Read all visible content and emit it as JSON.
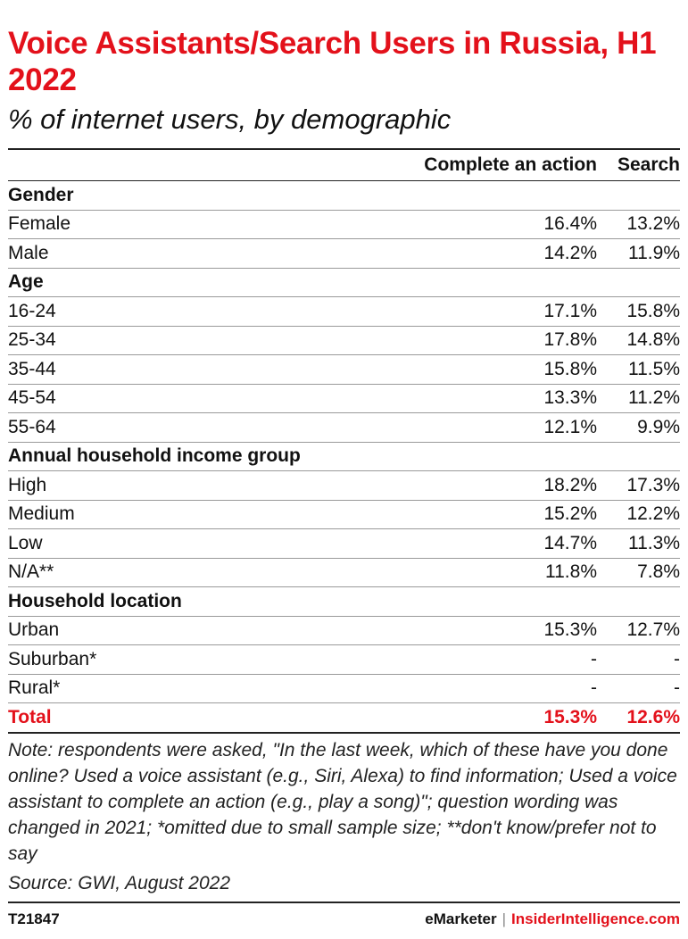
{
  "chart_data": {
    "type": "table",
    "title": "Voice Assistants/Search Users in Russia, H1 2022",
    "subtitle": "% of internet users, by demographic",
    "columns": [
      "",
      "Complete an action",
      "Search"
    ],
    "groups": [
      {
        "name": "Gender",
        "rows": [
          {
            "label": "Female",
            "action": "16.4%",
            "search": "13.2%"
          },
          {
            "label": "Male",
            "action": "14.2%",
            "search": "11.9%"
          }
        ]
      },
      {
        "name": "Age",
        "rows": [
          {
            "label": "16-24",
            "action": "17.1%",
            "search": "15.8%"
          },
          {
            "label": "25-34",
            "action": "17.8%",
            "search": "14.8%"
          },
          {
            "label": "35-44",
            "action": "15.8%",
            "search": "11.5%"
          },
          {
            "label": "45-54",
            "action": "13.3%",
            "search": "11.2%"
          },
          {
            "label": "55-64",
            "action": "12.1%",
            "search": "9.9%"
          }
        ]
      },
      {
        "name": "Annual household income group",
        "rows": [
          {
            "label": "High",
            "action": "18.2%",
            "search": "17.3%"
          },
          {
            "label": "Medium",
            "action": "15.2%",
            "search": "12.2%"
          },
          {
            "label": "Low",
            "action": "14.7%",
            "search": "11.3%"
          },
          {
            "label": "N/A**",
            "action": "11.8%",
            "search": "7.8%"
          }
        ]
      },
      {
        "name": "Household location",
        "rows": [
          {
            "label": "Urban",
            "action": "15.3%",
            "search": "12.7%"
          },
          {
            "label": "Suburban*",
            "action": "-",
            "search": "-"
          },
          {
            "label": "Rural*",
            "action": "-",
            "search": "-"
          }
        ]
      }
    ],
    "total": {
      "label": "Total",
      "action": "15.3%",
      "search": "12.6%"
    }
  },
  "note": "Note: respondents were asked, \"In the last week, which of these have you done online? Used a voice assistant (e.g., Siri, Alexa) to find information; Used a voice assistant to complete an action (e.g., play a song)\"; question wording was changed in 2021; *omitted due to small sample size; **don't know/prefer not to say",
  "source": "Source: GWI, August 2022",
  "footer": {
    "id": "T21847",
    "brand1": "eMarketer",
    "separator": "|",
    "brand2": "InsiderIntelligence.com"
  },
  "colors": {
    "accent": "#e3111b",
    "text": "#111111",
    "rule": "#9a9a9a"
  }
}
